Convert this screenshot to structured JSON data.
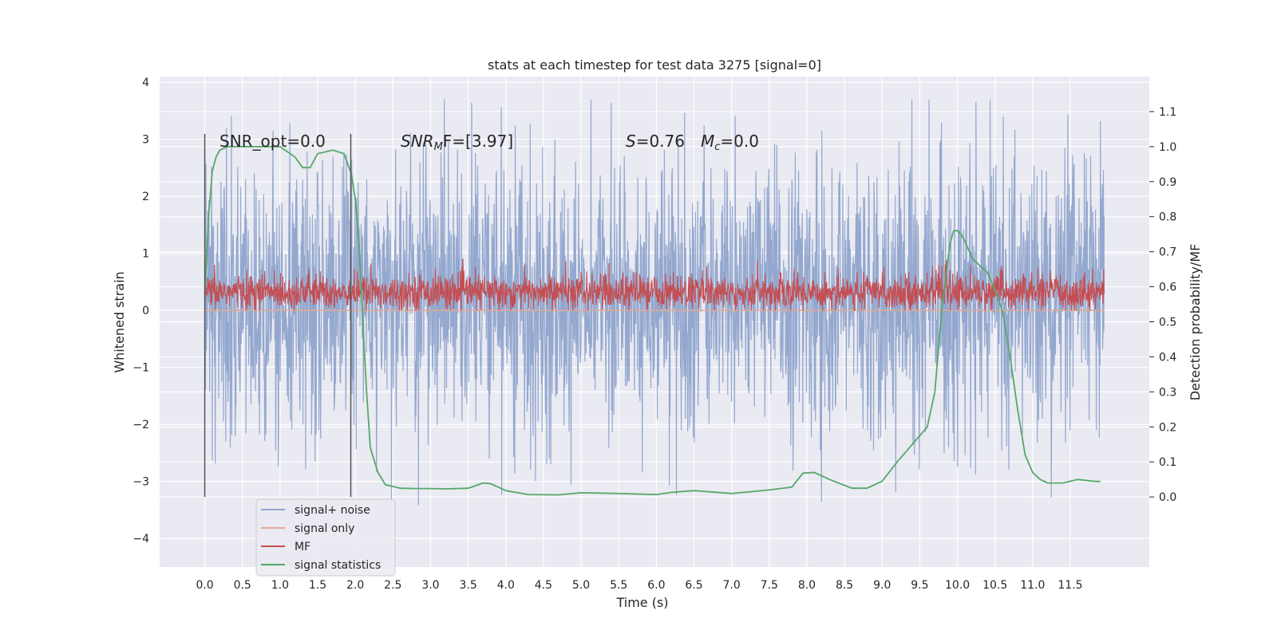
{
  "chart_data": {
    "type": "line",
    "title": "stats at each timestep for test data 3275 [signal=0]",
    "xlabel": "Time (s)",
    "ylabel": "Whitened strain",
    "ylabel_right": "Detection probability/MF",
    "xlim": [
      -0.6,
      12.55
    ],
    "ylim": [
      -4.5,
      4.1
    ],
    "ylim_right": [
      -0.2,
      1.2
    ],
    "x_ticks": [
      "0.0",
      "0.5",
      "1.0",
      "1.5",
      "2.0",
      "2.5",
      "3.0",
      "3.5",
      "4.0",
      "4.5",
      "5.0",
      "5.5",
      "6.0",
      "6.5",
      "7.0",
      "7.5",
      "8.0",
      "8.5",
      "9.0",
      "9.5",
      "10.0",
      "10.5",
      "11.0",
      "11.5"
    ],
    "y_ticks": [
      "4",
      "3",
      "2",
      "1",
      "0",
      "−1",
      "−2",
      "−3",
      "−4"
    ],
    "y_ticks_right": [
      "1.1",
      "1.0",
      "0.9",
      "0.8",
      "0.7",
      "0.6",
      "0.5",
      "0.4",
      "0.3",
      "0.2",
      "0.1",
      "0.0"
    ],
    "grid": true,
    "legend_position": "lower-left",
    "annotations": {
      "snr_opt": "SNR_opt=0.0",
      "snr_mf_main": "SNR",
      "snr_mf_sub": "M",
      "snr_mf_rest": "F=[3.97]",
      "s_label": "S",
      "s_value": "=0.76",
      "mc_label": "M",
      "mc_sub": "c",
      "mc_value": "=0.0"
    },
    "vertical_lines_x": [
      0.0,
      1.94
    ],
    "series": [
      {
        "name": "signal+ noise",
        "color": "#8fa4cc",
        "axis": "left",
        "style": "noise band",
        "x_range": [
          0.0,
          11.95
        ],
        "typical_range": [
          -1.7,
          2.2
        ],
        "extreme_range": [
          -4.1,
          3.7
        ]
      },
      {
        "name": "signal only",
        "color": "#e6a98f",
        "axis": "left",
        "x": [
          0.0,
          11.95
        ],
        "y": [
          0.0,
          0.0
        ]
      },
      {
        "name": "MF",
        "color": "#c44e52",
        "axis": "left",
        "style": "noise band",
        "x_range": [
          0.0,
          11.95
        ],
        "typical_range": [
          0.05,
          0.6
        ],
        "extreme_range": [
          0.0,
          1.0
        ]
      },
      {
        "name": "signal statistics",
        "color": "#55a868",
        "axis": "right",
        "x": [
          0.0,
          0.05,
          0.1,
          0.15,
          0.2,
          0.3,
          0.5,
          0.8,
          1.0,
          1.2,
          1.3,
          1.4,
          1.5,
          1.7,
          1.85,
          1.95,
          2.0,
          2.05,
          2.1,
          2.15,
          2.2,
          2.3,
          2.4,
          2.6,
          2.8,
          3.0,
          3.2,
          3.5,
          3.7,
          3.8,
          4.0,
          4.3,
          4.7,
          5.0,
          5.5,
          6.0,
          6.2,
          6.5,
          7.0,
          7.5,
          7.8,
          7.95,
          8.1,
          8.3,
          8.6,
          8.8,
          9.0,
          9.2,
          9.4,
          9.6,
          9.7,
          9.8,
          9.9,
          9.95,
          10.0,
          10.05,
          10.1,
          10.2,
          10.4,
          10.5,
          10.6,
          10.7,
          10.8,
          10.9,
          11.0,
          11.1,
          11.2,
          11.4,
          11.6,
          11.8,
          11.9
        ],
        "y": [
          0.58,
          0.8,
          0.93,
          0.97,
          0.99,
          1.0,
          1.0,
          1.0,
          1.0,
          0.97,
          0.94,
          0.94,
          0.98,
          0.99,
          0.98,
          0.92,
          0.85,
          0.72,
          0.5,
          0.3,
          0.14,
          0.07,
          0.035,
          0.025,
          0.024,
          0.024,
          0.023,
          0.025,
          0.04,
          0.038,
          0.018,
          0.007,
          0.006,
          0.012,
          0.01,
          0.007,
          0.013,
          0.018,
          0.01,
          0.02,
          0.028,
          0.068,
          0.07,
          0.05,
          0.025,
          0.025,
          0.045,
          0.1,
          0.15,
          0.2,
          0.3,
          0.55,
          0.72,
          0.76,
          0.76,
          0.75,
          0.73,
          0.68,
          0.64,
          0.59,
          0.53,
          0.4,
          0.25,
          0.12,
          0.07,
          0.05,
          0.04,
          0.04,
          0.05,
          0.045,
          0.044
        ]
      }
    ]
  }
}
